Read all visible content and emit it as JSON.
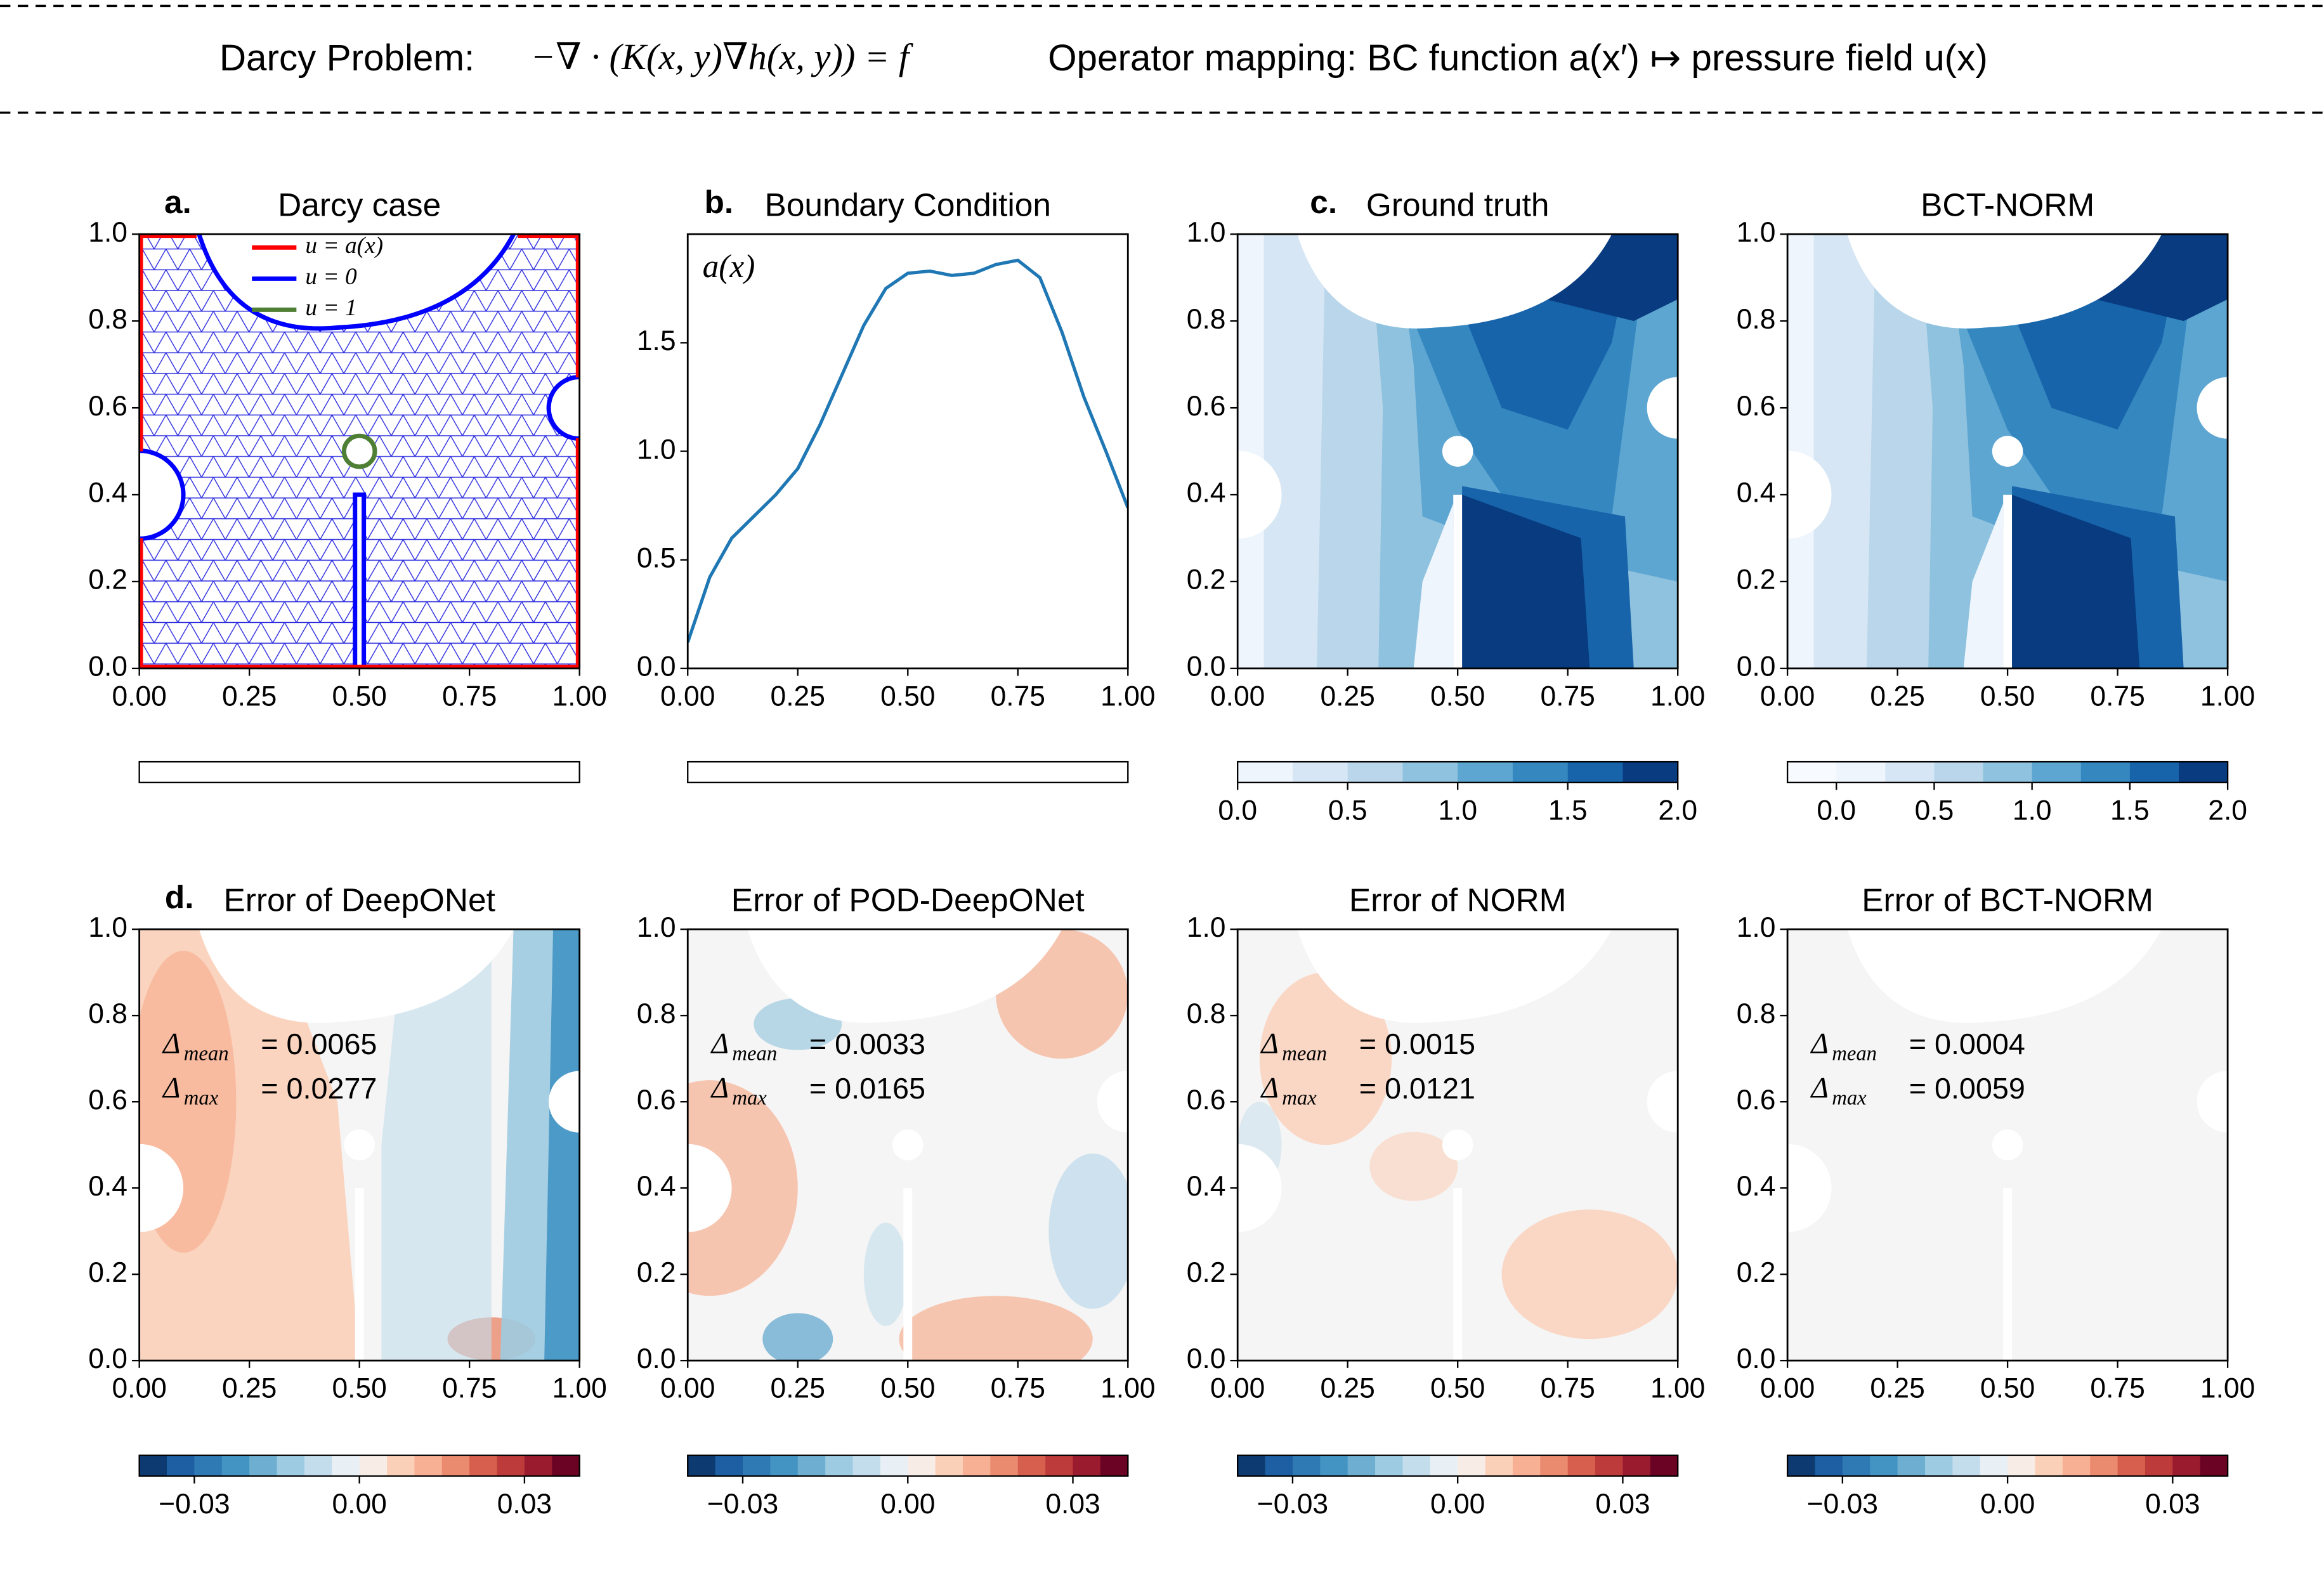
{
  "header": {
    "problem": "Darcy Problem:",
    "equation": "−∇ · (K(x, y)∇h(x, y)) = f",
    "mapping": "Operator mapping: BC function a(x′) ↦ pressure field u(x)"
  },
  "chart_data": [
    {
      "type": "mesh",
      "panel_label": "a.",
      "title": "Darcy case",
      "xlim": [
        0,
        1
      ],
      "ylim": [
        0,
        1
      ],
      "xticks": [
        {
          "value": 0,
          "label": "0.00"
        },
        0.25,
        {
          "value": 0.5,
          "label": "0.50"
        },
        0.75,
        {
          "value": 1,
          "label": "1.00"
        }
      ],
      "yticks": [
        {
          "value": 0,
          "label": "0.0"
        },
        0.2,
        0.4,
        0.6,
        0.8,
        {
          "value": 1,
          "label": "1.0"
        }
      ],
      "legend": [
        {
          "name": "u = a(x)",
          "color": "#ff0000"
        },
        {
          "name": "u = 0",
          "color": "#0000ff"
        },
        {
          "name": "u = 1",
          "color": "#4f7f35"
        }
      ]
    },
    {
      "type": "line",
      "panel_label": "b.",
      "title": "Boundary Condition",
      "annotation": "a(x)",
      "color": "#1f77b4",
      "x": [
        0,
        0.05,
        0.1,
        0.15,
        0.2,
        0.25,
        0.3,
        0.35,
        0.4,
        0.45,
        0.5,
        0.55,
        0.6,
        0.65,
        0.7,
        0.75,
        0.8,
        0.85,
        0.9,
        0.95,
        1
      ],
      "values": [
        0.12,
        0.42,
        0.6,
        0.7,
        0.8,
        0.92,
        1.12,
        1.35,
        1.58,
        1.75,
        1.82,
        1.83,
        1.81,
        1.82,
        1.86,
        1.88,
        1.8,
        1.55,
        1.25,
        1.0,
        0.74
      ],
      "xlim": [
        0,
        1
      ],
      "ylim": [
        0,
        2
      ],
      "xticks": [
        {
          "value": 0,
          "label": "0.00"
        },
        0.25,
        {
          "value": 0.5,
          "label": "0.50"
        },
        0.75,
        {
          "value": 1,
          "label": "1.00"
        }
      ],
      "yticks": [
        {
          "value": 0,
          "label": "0.0"
        },
        0.5,
        {
          "value": 1,
          "label": "1.0"
        },
        1.5
      ]
    },
    {
      "type": "contour",
      "panel_label": "c.",
      "title": "Ground truth",
      "xlim": [
        0,
        1
      ],
      "ylim": [
        0,
        1
      ],
      "xticks": [
        {
          "value": 0,
          "label": "0.00"
        },
        0.25,
        {
          "value": 0.5,
          "label": "0.50"
        },
        0.75,
        {
          "value": 1,
          "label": "1.00"
        }
      ],
      "yticks": [
        {
          "value": 0,
          "label": "0.0"
        },
        0.2,
        0.4,
        0.6,
        0.8,
        {
          "value": 1,
          "label": "1.0"
        }
      ],
      "colorbar": {
        "lim": [
          0,
          2
        ],
        "ticks": [
          {
            "value": 0,
            "label": "0.0"
          },
          0.5,
          {
            "value": 1,
            "label": "1.0"
          },
          1.5,
          {
            "value": 2,
            "label": "2.0"
          }
        ],
        "colors": [
          "#eef5fc",
          "#d6e6f4",
          "#b9d6ea",
          "#8fc2de",
          "#5da6d1",
          "#3587c0",
          "#1764ab",
          "#083b7f"
        ]
      }
    },
    {
      "type": "contour",
      "title": "BCT-NORM",
      "xlim": [
        0,
        1
      ],
      "ylim": [
        0,
        1
      ],
      "xticks": [
        {
          "value": 0,
          "label": "0.00"
        },
        0.25,
        {
          "value": 0.5,
          "label": "0.50"
        },
        0.75,
        {
          "value": 1,
          "label": "1.00"
        }
      ],
      "yticks": [
        {
          "value": 0,
          "label": "0.0"
        },
        0.2,
        0.4,
        0.6,
        0.8,
        {
          "value": 1,
          "label": "1.0"
        }
      ],
      "colorbar": {
        "lim": [
          -0.25,
          2
        ],
        "ticks": [
          {
            "value": 0,
            "label": "0.0"
          },
          0.5,
          {
            "value": 1,
            "label": "1.0"
          },
          1.5,
          {
            "value": 2,
            "label": "2.0"
          }
        ],
        "colors": [
          "#f7fbff",
          "#eef5fc",
          "#d6e6f4",
          "#b9d6ea",
          "#8fc2de",
          "#5da6d1",
          "#3587c0",
          "#1764ab",
          "#083b7f"
        ]
      }
    },
    {
      "type": "contour",
      "panel_label": "d.",
      "title": "Error of DeepONet",
      "xlim": [
        0,
        1
      ],
      "ylim": [
        0,
        1
      ],
      "xticks": [
        {
          "value": 0,
          "label": "0.00"
        },
        0.25,
        {
          "value": 0.5,
          "label": "0.50"
        },
        0.75,
        {
          "value": 1,
          "label": "1.00"
        }
      ],
      "yticks": [
        {
          "value": 0,
          "label": "0.0"
        },
        0.2,
        0.4,
        0.6,
        0.8,
        {
          "value": 1,
          "label": "1.0"
        }
      ],
      "annotations": [
        {
          "symbol": "Δ",
          "subscript": "mean",
          "text": "= 0.0065"
        },
        {
          "symbol": "Δ",
          "subscript": "max",
          "text": "= 0.0277"
        }
      ],
      "colorbar": {
        "lim": [
          -0.04,
          0.04
        ],
        "ticks": [
          {
            "value": -0.03,
            "label": "−0.03"
          },
          {
            "value": 0,
            "label": "0.00"
          },
          0.03
        ],
        "colors": [
          "#0d3a70",
          "#1d5fa2",
          "#2f79b5",
          "#4393c3",
          "#6eaed1",
          "#9dcbe1",
          "#c3ddec",
          "#e8f0f5",
          "#f8ece6",
          "#fbd0b9",
          "#f7b093",
          "#ea8a6e",
          "#d6604d",
          "#bd3b3b",
          "#9a1a2e",
          "#6b0424"
        ]
      }
    },
    {
      "type": "contour",
      "title": "Error of POD-DeepONet",
      "xlim": [
        0,
        1
      ],
      "ylim": [
        0,
        1
      ],
      "xticks": [
        {
          "value": 0,
          "label": "0.00"
        },
        0.25,
        {
          "value": 0.5,
          "label": "0.50"
        },
        0.75,
        {
          "value": 1,
          "label": "1.00"
        }
      ],
      "yticks": [
        {
          "value": 0,
          "label": "0.0"
        },
        0.2,
        0.4,
        0.6,
        0.8,
        {
          "value": 1,
          "label": "1.0"
        }
      ],
      "annotations": [
        {
          "symbol": "Δ",
          "subscript": "mean",
          "text": "= 0.0033"
        },
        {
          "symbol": "Δ",
          "subscript": "max",
          "text": "= 0.0165"
        }
      ],
      "colorbar": {
        "lim": [
          -0.04,
          0.04
        ],
        "ticks": [
          {
            "value": -0.03,
            "label": "−0.03"
          },
          {
            "value": 0,
            "label": "0.00"
          },
          0.03
        ],
        "colors": [
          "#0d3a70",
          "#1d5fa2",
          "#2f79b5",
          "#4393c3",
          "#6eaed1",
          "#9dcbe1",
          "#c3ddec",
          "#e8f0f5",
          "#f8ece6",
          "#fbd0b9",
          "#f7b093",
          "#ea8a6e",
          "#d6604d",
          "#bd3b3b",
          "#9a1a2e",
          "#6b0424"
        ]
      }
    },
    {
      "type": "contour",
      "title": "Error of NORM",
      "xlim": [
        0,
        1
      ],
      "ylim": [
        0,
        1
      ],
      "xticks": [
        {
          "value": 0,
          "label": "0.00"
        },
        0.25,
        {
          "value": 0.5,
          "label": "0.50"
        },
        0.75,
        {
          "value": 1,
          "label": "1.00"
        }
      ],
      "yticks": [
        {
          "value": 0,
          "label": "0.0"
        },
        0.2,
        0.4,
        0.6,
        0.8,
        {
          "value": 1,
          "label": "1.0"
        }
      ],
      "annotations": [
        {
          "symbol": "Δ",
          "subscript": "mean",
          "text": "= 0.0015"
        },
        {
          "symbol": "Δ",
          "subscript": "max",
          "text": "= 0.0121"
        }
      ],
      "colorbar": {
        "lim": [
          -0.04,
          0.04
        ],
        "ticks": [
          {
            "value": -0.03,
            "label": "−0.03"
          },
          {
            "value": 0,
            "label": "0.00"
          },
          0.03
        ],
        "colors": [
          "#0d3a70",
          "#1d5fa2",
          "#2f79b5",
          "#4393c3",
          "#6eaed1",
          "#9dcbe1",
          "#c3ddec",
          "#e8f0f5",
          "#f8ece6",
          "#fbd0b9",
          "#f7b093",
          "#ea8a6e",
          "#d6604d",
          "#bd3b3b",
          "#9a1a2e",
          "#6b0424"
        ]
      }
    },
    {
      "type": "contour",
      "title": "Error of BCT-NORM",
      "xlim": [
        0,
        1
      ],
      "ylim": [
        0,
        1
      ],
      "xticks": [
        {
          "value": 0,
          "label": "0.00"
        },
        0.25,
        {
          "value": 0.5,
          "label": "0.50"
        },
        0.75,
        {
          "value": 1,
          "label": "1.00"
        }
      ],
      "yticks": [
        {
          "value": 0,
          "label": "0.0"
        },
        0.2,
        0.4,
        0.6,
        0.8,
        {
          "value": 1,
          "label": "1.0"
        }
      ],
      "annotations": [
        {
          "symbol": "Δ",
          "subscript": "mean",
          "text": "= 0.0004"
        },
        {
          "symbol": "Δ",
          "subscript": "max",
          "text": "= 0.0059"
        }
      ],
      "colorbar": {
        "lim": [
          -0.04,
          0.04
        ],
        "ticks": [
          {
            "value": -0.03,
            "label": "−0.03"
          },
          {
            "value": 0,
            "label": "0.00"
          },
          0.03
        ],
        "colors": [
          "#0d3a70",
          "#1d5fa2",
          "#2f79b5",
          "#4393c3",
          "#6eaed1",
          "#9dcbe1",
          "#c3ddec",
          "#e8f0f5",
          "#f8ece6",
          "#fbd0b9",
          "#f7b093",
          "#ea8a6e",
          "#d6604d",
          "#bd3b3b",
          "#9a1a2e",
          "#6b0424"
        ]
      }
    }
  ]
}
